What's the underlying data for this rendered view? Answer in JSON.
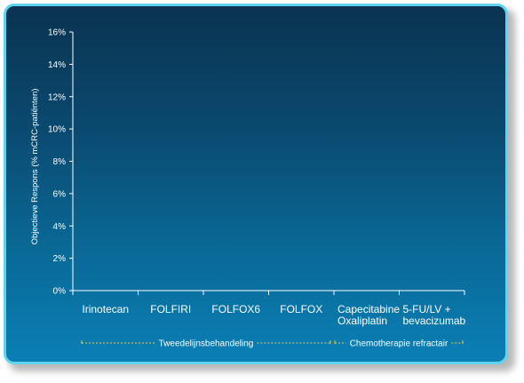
{
  "chart_data": {
    "type": "bar",
    "title": "",
    "xlabel": "",
    "ylabel": "Objectieve Respons (% mCRC-patiënten)",
    "ylim": [
      0,
      16
    ],
    "yticks": [
      "0%",
      "2%",
      "4%",
      "6%",
      "8%",
      "10%",
      "12%",
      "14%",
      "16%"
    ],
    "categories": [
      [
        "Irinotecan"
      ],
      [
        "FOLFIRI"
      ],
      [
        "FOLFOX6"
      ],
      [
        "FOLFOX"
      ],
      [
        "Capecitabine",
        "Oxaliplatin"
      ],
      [
        "5-FU/LV +",
        "bevacizumab"
      ]
    ],
    "groups": [
      {
        "label": "Tweedelijnsbehandeling"
      },
      {
        "label": "Chemotherapie refractair"
      }
    ],
    "colors": {
      "axis": "#ffffff",
      "group_bracket": "#e9c84a",
      "panel_border": "#5fd3f0"
    }
  }
}
